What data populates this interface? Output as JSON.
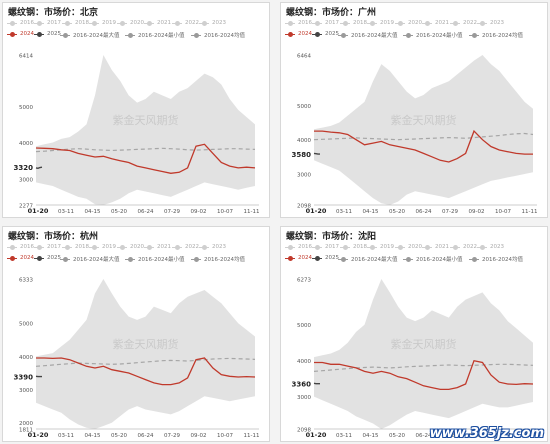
{
  "legend_row1": [
    {
      "label": "2016",
      "color": "#cfcfcf"
    },
    {
      "label": "2017",
      "color": "#cfcfcf"
    },
    {
      "label": "2018",
      "color": "#cfcfcf"
    },
    {
      "label": "2019",
      "color": "#cfcfcf"
    },
    {
      "label": "2020",
      "color": "#cfcfcf"
    },
    {
      "label": "2021",
      "color": "#cfcfcf"
    },
    {
      "label": "2022",
      "color": "#cfcfcf"
    },
    {
      "label": "2023",
      "color": "#cfcfcf"
    }
  ],
  "legend_row2": [
    {
      "label": "2024",
      "color": "#c0392b"
    },
    {
      "label": "2025",
      "color": "#444444"
    },
    {
      "label": "2016-2024最大值",
      "color": "#9a9a9a"
    },
    {
      "label": "2016-2024最小值",
      "color": "#9a9a9a"
    },
    {
      "label": "2016-2024均值",
      "color": "#9a9a9a"
    }
  ],
  "watermark": "紫金天风期货",
  "site_watermark": "www.365jz.com",
  "colors": {
    "band": "#e2e2e2",
    "y2024": "#c0392b",
    "y2025": "#444444",
    "avg": "#a6a6a6"
  },
  "chart_data": [
    {
      "type": "area",
      "title": "螺纹钢：市场价：北京",
      "yticks": [
        6414,
        5000,
        4000,
        3000,
        2277
      ],
      "ylim": [
        2277,
        6414
      ],
      "x_categories": [
        "01-20",
        "03-11",
        "04-15",
        "05-20",
        "06-24",
        "07-29",
        "09-02",
        "10-07",
        "11-11"
      ],
      "current_label": "3320",
      "max": [
        3900,
        3950,
        4000,
        4100,
        4150,
        4300,
        4500,
        5300,
        6414,
        6000,
        5700,
        5300,
        5100,
        5200,
        5400,
        5300,
        5200,
        5400,
        5500,
        5700,
        5900,
        5800,
        5600,
        5200,
        4900,
        4700,
        4500
      ],
      "min": [
        2900,
        2850,
        2800,
        2700,
        2600,
        2500,
        2450,
        2300,
        2277,
        2350,
        2450,
        2600,
        2700,
        2650,
        2600,
        2550,
        2500,
        2600,
        2700,
        2800,
        2900,
        2850,
        2800,
        2750,
        2700,
        2750,
        2800
      ],
      "avg": [
        3750,
        3760,
        3780,
        3800,
        3820,
        3830,
        3820,
        3800,
        3790,
        3780,
        3790,
        3800,
        3810,
        3820,
        3830,
        3840,
        3830,
        3820,
        3800,
        3790,
        3800,
        3810,
        3820,
        3830,
        3830,
        3820,
        3810
      ],
      "y2024": [
        3850,
        3840,
        3830,
        3800,
        3780,
        3700,
        3650,
        3600,
        3620,
        3550,
        3500,
        3450,
        3350,
        3300,
        3250,
        3200,
        3150,
        3180,
        3300,
        3900,
        3950,
        3700,
        3450,
        3350,
        3300,
        3320,
        3300
      ],
      "y2025": [
        3300,
        3290,
        3310,
        3320
      ]
    },
    {
      "type": "area",
      "title": "螺纹钢：市场价：广州",
      "yticks": [
        6464,
        5000,
        4000,
        3000,
        2098
      ],
      "ylim": [
        2098,
        6464
      ],
      "x_categories": [
        "01-20",
        "03-11",
        "04-15",
        "05-20",
        "06-24",
        "07-29",
        "09-02",
        "10-07",
        "11-11"
      ],
      "current_label": "3580",
      "max": [
        4300,
        4350,
        4400,
        4500,
        4700,
        4900,
        5100,
        5700,
        6200,
        6000,
        5700,
        5400,
        5200,
        5300,
        5500,
        5600,
        5700,
        5900,
        6100,
        6300,
        6464,
        6200,
        6000,
        5700,
        5400,
        5100,
        4900
      ],
      "min": [
        3400,
        3300,
        3200,
        3100,
        2900,
        2700,
        2500,
        2300,
        2150,
        2098,
        2200,
        2400,
        2500,
        2450,
        2400,
        2350,
        2300,
        2400,
        2500,
        2600,
        2700,
        2800,
        2850,
        2900,
        2950,
        3000,
        3050
      ],
      "avg": [
        4000,
        4010,
        4020,
        4030,
        4040,
        4050,
        4040,
        4030,
        4020,
        4010,
        4000,
        4010,
        4020,
        4030,
        4040,
        4050,
        4060,
        4050,
        4040,
        4060,
        4080,
        4100,
        4120,
        4150,
        4170,
        4180,
        4150
      ],
      "y2024": [
        4250,
        4250,
        4220,
        4200,
        4150,
        4000,
        3850,
        3900,
        3950,
        3850,
        3800,
        3750,
        3700,
        3600,
        3500,
        3400,
        3350,
        3450,
        3600,
        4250,
        4000,
        3800,
        3700,
        3650,
        3600,
        3580,
        3580
      ],
      "y2025": [
        3600,
        3590,
        3580,
        3580
      ]
    },
    {
      "type": "area",
      "title": "螺纹钢：市场价：杭州",
      "yticks": [
        6333,
        5000,
        4000,
        3000,
        2000,
        1811
      ],
      "ylim": [
        1811,
        6333
      ],
      "x_categories": [
        "01-20",
        "03-11",
        "04-15",
        "05-20",
        "06-24",
        "07-29",
        "09-02",
        "10-07",
        "11-11"
      ],
      "current_label": "3390",
      "max": [
        4000,
        4050,
        4100,
        4300,
        4500,
        4800,
        5100,
        5900,
        6333,
        5900,
        5500,
        5200,
        5100,
        5200,
        5500,
        5400,
        5300,
        5600,
        5800,
        5900,
        6000,
        5800,
        5600,
        5300,
        5000,
        4800,
        4600
      ],
      "min": [
        2600,
        2500,
        2400,
        2300,
        2100,
        1950,
        1850,
        1811,
        1900,
        2000,
        2200,
        2400,
        2500,
        2400,
        2350,
        2300,
        2250,
        2350,
        2500,
        2650,
        2800,
        2750,
        2700,
        2650,
        2700,
        2750,
        2800
      ],
      "avg": [
        3700,
        3720,
        3740,
        3760,
        3780,
        3800,
        3790,
        3780,
        3770,
        3760,
        3770,
        3790,
        3810,
        3830,
        3850,
        3870,
        3880,
        3870,
        3860,
        3880,
        3900,
        3920,
        3930,
        3940,
        3930,
        3920,
        3910
      ],
      "y2024": [
        3950,
        3950,
        3940,
        3950,
        3900,
        3800,
        3700,
        3650,
        3700,
        3600,
        3550,
        3500,
        3400,
        3300,
        3200,
        3150,
        3150,
        3200,
        3350,
        3900,
        3950,
        3650,
        3450,
        3400,
        3380,
        3390,
        3380
      ],
      "y2025": [
        3400,
        3390,
        3390,
        3390
      ]
    },
    {
      "type": "area",
      "title": "螺纹钢：市场价：沈阳",
      "yticks": [
        6273,
        5000,
        4000,
        3000,
        2098
      ],
      "ylim": [
        2098,
        6273
      ],
      "x_categories": [
        "01-20",
        "03-11",
        "04-15",
        "05-20",
        "06-24",
        "07-29",
        "09-02",
        "10-07",
        "11-11"
      ],
      "current_label": "3360",
      "max": [
        4100,
        4150,
        4200,
        4300,
        4500,
        4800,
        5000,
        5700,
        6273,
        5900,
        5500,
        5200,
        5100,
        5200,
        5400,
        5300,
        5200,
        5500,
        5700,
        5800,
        5900,
        5600,
        5400,
        5100,
        4900,
        4700,
        4500
      ],
      "min": [
        3000,
        2900,
        2800,
        2700,
        2600,
        2450,
        2350,
        2250,
        2098,
        2200,
        2350,
        2500,
        2600,
        2550,
        2500,
        2450,
        2400,
        2500,
        2600,
        2700,
        2800,
        2750,
        2700,
        2700,
        2750,
        2800,
        2850
      ],
      "avg": [
        3700,
        3720,
        3740,
        3760,
        3780,
        3800,
        3810,
        3820,
        3810,
        3800,
        3810,
        3830,
        3840,
        3850,
        3860,
        3870,
        3880,
        3870,
        3860,
        3870,
        3880,
        3890,
        3900,
        3900,
        3890,
        3880,
        3870
      ],
      "y2024": [
        3950,
        3950,
        3900,
        3900,
        3850,
        3800,
        3700,
        3650,
        3700,
        3650,
        3550,
        3500,
        3400,
        3300,
        3250,
        3200,
        3200,
        3250,
        3350,
        4000,
        3950,
        3600,
        3400,
        3350,
        3340,
        3360,
        3350
      ],
      "y2025": [
        3370,
        3360,
        3360,
        3360
      ]
    }
  ]
}
